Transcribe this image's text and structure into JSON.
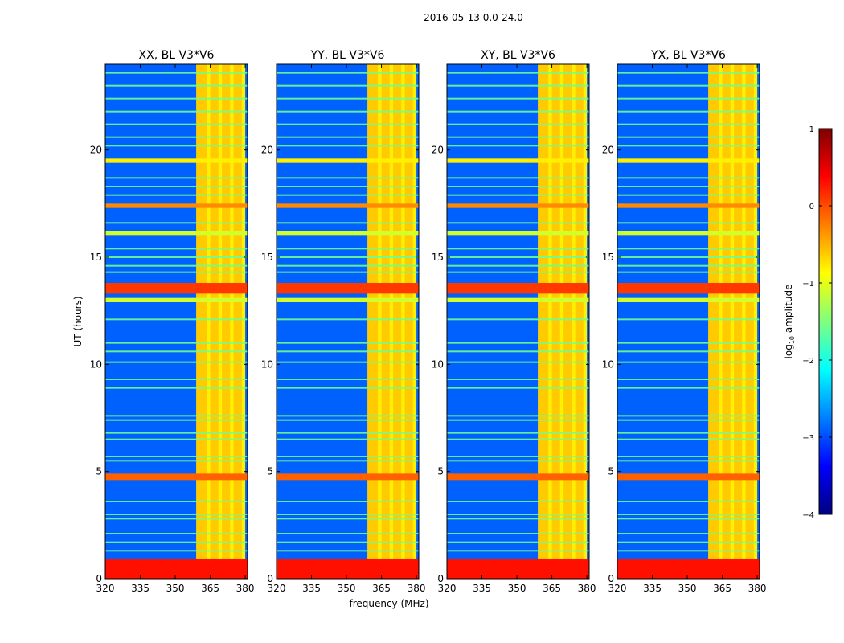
{
  "figure": {
    "suptitle": "2016-05-13 0.0-24.0",
    "xlabel": "frequency (MHz)",
    "ylabel": "UT (hours)"
  },
  "colorbar": {
    "label_prefix": "log",
    "label_subscript": "10",
    "label_suffix": " amplitude",
    "range": [
      -4,
      1
    ],
    "ticks": [
      "1",
      "0",
      "−1",
      "−2",
      "−3",
      "−4"
    ],
    "tick_values": [
      1,
      0,
      -1,
      -2,
      -3,
      -4
    ],
    "colormap": "jet",
    "colors": [
      "#00007f",
      "#0000ff",
      "#007fff",
      "#00ffff",
      "#7fff7f",
      "#ffff00",
      "#ff7f00",
      "#ff0000",
      "#7f0000"
    ]
  },
  "chart_data": {
    "type": "heatmap",
    "panels": [
      {
        "title": "XX, BL V3*V6",
        "show_y_ticks": true
      },
      {
        "title": "YY, BL V3*V6",
        "show_y_ticks": true
      },
      {
        "title": "XY, BL V3*V6",
        "show_y_ticks": true
      },
      {
        "title": "YX, BL V3*V6",
        "show_y_ticks": true
      }
    ],
    "x_range_mhz": [
      320,
      381
    ],
    "x_ticks": [
      320,
      335,
      350,
      365,
      380
    ],
    "x_tick_labels": [
      "320",
      "335",
      "350",
      "365",
      "380"
    ],
    "y_range_hours": [
      0,
      24
    ],
    "y_ticks": [
      0,
      5,
      10,
      15,
      20
    ],
    "y_tick_labels": [
      "0",
      "5",
      "10",
      "15",
      "20"
    ],
    "background_level": -2.9,
    "active_band_mhz": [
      359,
      380
    ],
    "active_band_level": -0.8,
    "active_subbands_mhz": [
      [
        359,
        363.5
      ],
      [
        365,
        368.5
      ],
      [
        370,
        373.5
      ],
      [
        375,
        378.5
      ]
    ],
    "strong_rfi_hours": [
      [
        0.0,
        0.9,
        0.3
      ],
      [
        4.6,
        4.9,
        -0.1
      ],
      [
        13.3,
        13.8,
        0.1
      ],
      [
        17.3,
        17.5,
        -0.3
      ],
      [
        19.4,
        19.6,
        -0.8
      ],
      [
        16.0,
        16.2,
        -1.1
      ],
      [
        12.9,
        13.1,
        -1.1
      ]
    ],
    "weak_rfi_hours": [
      1.3,
      1.7,
      2.1,
      2.8,
      3.0,
      3.6,
      5.5,
      5.7,
      6.5,
      6.8,
      7.4,
      7.6,
      8.9,
      9.3,
      10.1,
      10.6,
      11.0,
      12.1,
      14.3,
      14.6,
      15.0,
      15.4,
      16.6,
      17.9,
      18.3,
      18.7,
      20.2,
      20.6,
      21.2,
      21.8,
      22.4,
      23.0,
      23.6
    ]
  }
}
